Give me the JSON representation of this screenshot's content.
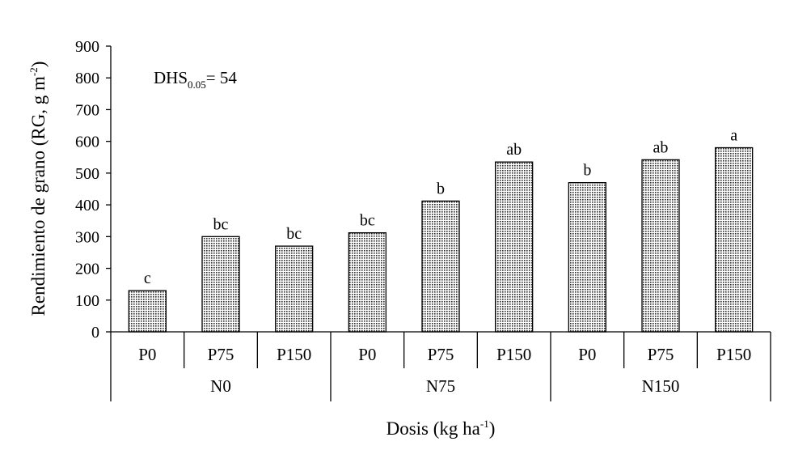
{
  "chart_data": {
    "type": "bar",
    "groups": [
      "N0",
      "N75",
      "N150"
    ],
    "categories": [
      "P0",
      "P75",
      "P150",
      "P0",
      "P75",
      "P150",
      "P0",
      "P75",
      "P150"
    ],
    "values": [
      130,
      300,
      270,
      312,
      412,
      535,
      470,
      542,
      580
    ],
    "letters": [
      "c",
      "bc",
      "bc",
      "bc",
      "b",
      "ab",
      "b",
      "ab",
      "a"
    ],
    "ylim": [
      0,
      900
    ],
    "yticks": [
      0,
      100,
      200,
      300,
      400,
      500,
      600,
      700,
      800,
      900
    ],
    "ylabel": {
      "text": "Rendimiento de grano (RG, g m",
      "sup": "-2",
      "end": ")"
    },
    "xlabel": {
      "text": "Dosis (kg ha",
      "sup": "-1",
      "end": ")"
    },
    "annotation": {
      "main": "DHS",
      "sub": "0.05",
      "rest": "= 54"
    },
    "grid": false,
    "legend": "none",
    "bar_fill": "dotted-gray",
    "colors": {
      "bar_dot": "#000000",
      "bar_bg": "#bdbdbd",
      "axis": "#000000"
    }
  }
}
